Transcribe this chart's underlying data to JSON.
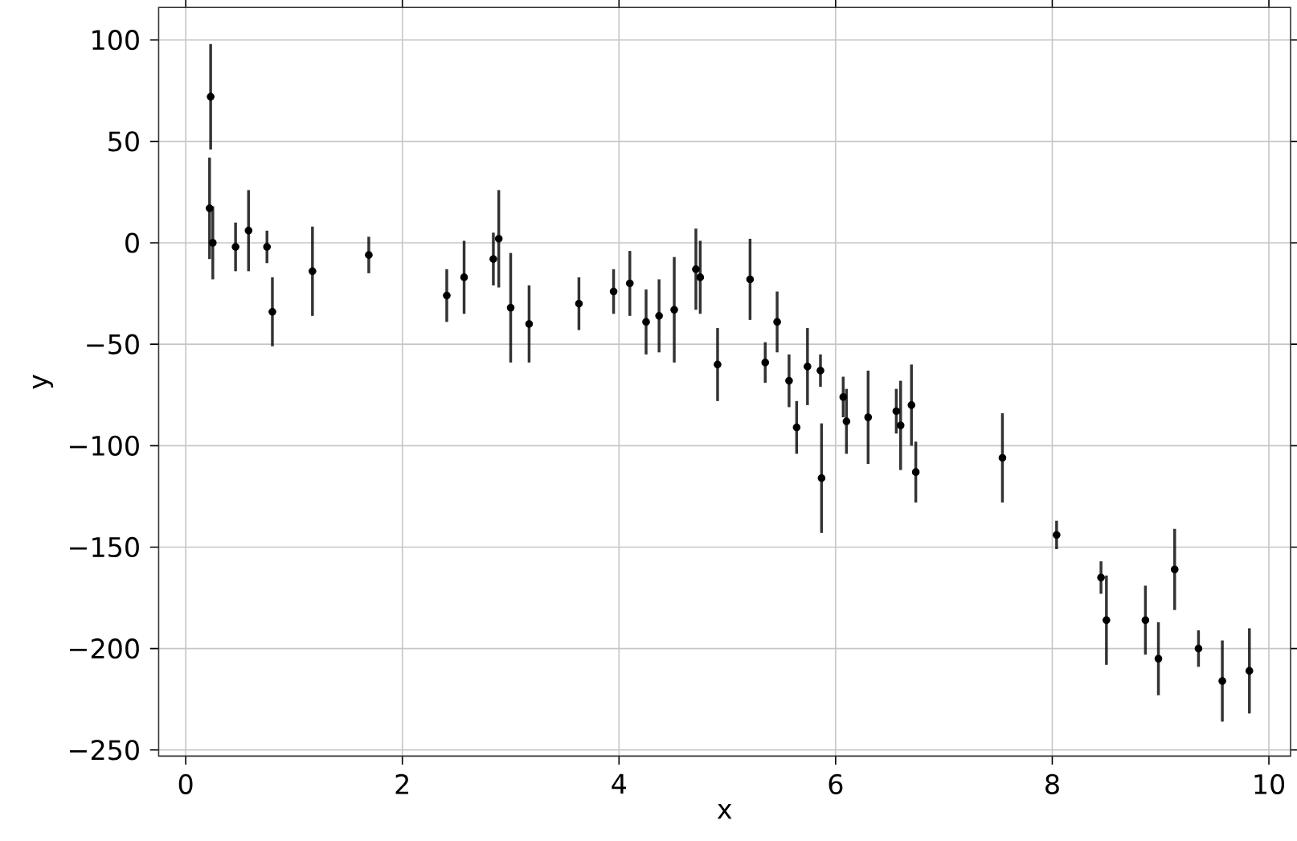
{
  "chart_data": {
    "type": "scatter",
    "xlabel": "x",
    "ylabel": "y",
    "x": [
      0.23,
      0.22,
      0.25,
      0.46,
      0.58,
      0.75,
      0.8,
      1.17,
      1.69,
      2.41,
      2.57,
      2.89,
      2.84,
      3.0,
      3.17,
      3.63,
      3.95,
      4.1,
      4.25,
      4.37,
      4.51,
      4.71,
      4.75,
      4.91,
      5.21,
      5.35,
      5.46,
      5.57,
      5.64,
      5.74,
      5.86,
      5.87,
      6.07,
      6.1,
      6.3,
      6.56,
      6.6,
      6.7,
      6.74,
      7.54,
      8.04,
      8.45,
      8.5,
      8.86,
      8.98,
      9.13,
      9.35,
      9.57,
      9.82
    ],
    "series": [
      {
        "color": "#000000",
        "values": [
          72,
          17,
          0,
          -2,
          6,
          -2,
          -34,
          -14,
          -6,
          -26,
          -17,
          2,
          -8,
          -32,
          -40,
          -30,
          -24,
          -20,
          -39,
          -36,
          -33,
          -13,
          -17,
          -60,
          -18,
          -59,
          -39,
          -68,
          -91,
          -61,
          -63,
          -116,
          -76,
          -88,
          -86,
          -83,
          -90,
          -80,
          -113,
          -106,
          -144,
          -165,
          -186,
          -186,
          -205,
          -161,
          -200,
          -216,
          -211
        ],
        "errors": [
          26,
          25,
          18,
          12,
          20,
          8,
          17,
          22,
          9,
          13,
          18,
          24,
          13,
          27,
          19,
          13,
          11,
          16,
          16,
          18,
          26,
          20,
          18,
          18,
          20,
          10,
          15,
          13,
          13,
          19,
          8,
          27,
          10,
          16,
          23,
          11,
          22,
          20,
          15,
          22,
          7,
          8,
          22,
          17,
          18,
          20,
          9,
          20,
          21
        ]
      }
    ],
    "xlim": [
      -0.25,
      10.2
    ],
    "ylim": [
      -253,
      116
    ],
    "xticks": [
      0,
      2,
      4,
      6,
      8,
      10
    ],
    "yticks": [
      {
        "value": -250,
        "label": "−250"
      },
      {
        "value": -200,
        "label": "−200"
      },
      {
        "value": -150,
        "label": "−150"
      },
      {
        "value": -100,
        "label": "−100"
      },
      {
        "value": -50,
        "label": "−50"
      },
      0,
      50,
      100
    ],
    "grid": true,
    "marker": "circle"
  }
}
